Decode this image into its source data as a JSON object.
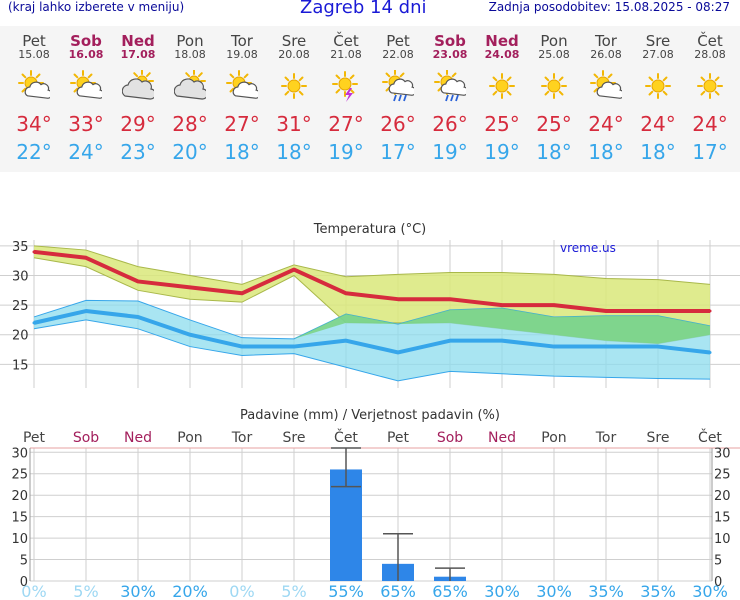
{
  "header": {
    "menu_hint": "(kraj lahko izberete v meniju)",
    "title": "Zagreb 14 dni",
    "updated": "Zadnja posodobitev: 15.08.2025 - 08:27"
  },
  "days": [
    {
      "name": "Pet",
      "date": "15.08",
      "weekend": false,
      "icon": "sun-cloud",
      "max": "34°",
      "min": "22°"
    },
    {
      "name": "Sob",
      "date": "16.08",
      "weekend": true,
      "icon": "sun-cloud",
      "max": "33°",
      "min": "24°"
    },
    {
      "name": "Ned",
      "date": "17.08",
      "weekend": true,
      "icon": "cloud-sun",
      "max": "29°",
      "min": "23°"
    },
    {
      "name": "Pon",
      "date": "18.08",
      "weekend": false,
      "icon": "cloud-sun",
      "max": "28°",
      "min": "20°"
    },
    {
      "name": "Tor",
      "date": "19.08",
      "weekend": false,
      "icon": "sun-cloud",
      "max": "27°",
      "min": "18°"
    },
    {
      "name": "Sre",
      "date": "20.08",
      "weekend": false,
      "icon": "sun",
      "max": "31°",
      "min": "18°"
    },
    {
      "name": "Čet",
      "date": "21.08",
      "weekend": false,
      "icon": "sun-storm",
      "max": "27°",
      "min": "19°"
    },
    {
      "name": "Pet",
      "date": "22.08",
      "weekend": false,
      "icon": "sun-rain",
      "max": "26°",
      "min": "17°"
    },
    {
      "name": "Sob",
      "date": "23.08",
      "weekend": true,
      "icon": "sun-rain",
      "max": "26°",
      "min": "19°"
    },
    {
      "name": "Ned",
      "date": "24.08",
      "weekend": true,
      "icon": "sun",
      "max": "25°",
      "min": "19°"
    },
    {
      "name": "Pon",
      "date": "25.08",
      "weekend": false,
      "icon": "sun",
      "max": "25°",
      "min": "18°"
    },
    {
      "name": "Tor",
      "date": "26.08",
      "weekend": false,
      "icon": "sun-cloud",
      "max": "24°",
      "min": "18°"
    },
    {
      "name": "Sre",
      "date": "27.08",
      "weekend": false,
      "icon": "sun",
      "max": "24°",
      "min": "18°"
    },
    {
      "name": "Čet",
      "date": "28.08",
      "weekend": false,
      "icon": "sun",
      "max": "24°",
      "min": "17°"
    }
  ],
  "colors": {
    "max_line": "#d62b3d",
    "max_band": "#d9e87a",
    "min_line": "#36a6ea",
    "min_band": "#8cdcee",
    "overlap_band": "#77d27a",
    "bar": "#2e86e8",
    "prob": "#36a6ea",
    "prob_zero": "#9ed8f3",
    "weekday": "#444444",
    "weekend": "#a31f5c"
  },
  "chart_data": [
    {
      "type": "line",
      "title": "Temperatura (°C)",
      "watermark": "vreme.us",
      "ylim": [
        11,
        36
      ],
      "yticks": [
        "15",
        "20",
        "25",
        "30",
        "35"
      ],
      "grid": true,
      "series": [
        {
          "name": "max",
          "values": [
            34,
            33,
            29,
            28,
            27,
            31,
            27,
            26,
            26,
            25,
            25,
            24,
            24,
            24
          ],
          "band_high": [
            35,
            34.3,
            31.5,
            30,
            28.5,
            31.8,
            29.8,
            30.2,
            30.5,
            30.5,
            30.2,
            29.5,
            29.3,
            28.5
          ],
          "band_low": [
            33,
            31.5,
            27.5,
            26,
            25.5,
            30,
            22,
            22,
            22,
            21,
            20,
            19,
            18.5,
            20
          ]
        },
        {
          "name": "min",
          "values": [
            22,
            24,
            23,
            20,
            18,
            18,
            19,
            17,
            19,
            19,
            18,
            18,
            18,
            17
          ],
          "band_high": [
            23,
            25.8,
            25.7,
            22.5,
            19.5,
            19.3,
            23.5,
            21.8,
            24.2,
            24.5,
            23,
            23.2,
            23.2,
            21.5
          ],
          "band_low": [
            21,
            22.5,
            21,
            18,
            16.5,
            16.8,
            14.5,
            12.2,
            13.8,
            13.4,
            13.0,
            12.8,
            12.6,
            12.5
          ]
        }
      ]
    },
    {
      "type": "bar",
      "title": "Padavine (mm) / Verjetnost padavin (%)",
      "categories": [
        "Pet",
        "Sob",
        "Ned",
        "Pon",
        "Tor",
        "Sre",
        "Čet",
        "Pet",
        "Sob",
        "Ned",
        "Pon",
        "Tor",
        "Sre",
        "Čet"
      ],
      "values": [
        0,
        0,
        0,
        0,
        0,
        0,
        26,
        4,
        1,
        0,
        0,
        0,
        0,
        0
      ],
      "error_high": [
        0,
        0,
        0,
        0,
        0,
        0,
        31,
        11,
        3,
        0,
        0,
        0,
        0,
        0
      ],
      "error_low": [
        0,
        0,
        0,
        0,
        0,
        0,
        22,
        0,
        0,
        0,
        0,
        0,
        0,
        0
      ],
      "ylim": [
        0,
        31
      ],
      "yticks": [
        "0",
        "5",
        "10",
        "15",
        "20",
        "25",
        "30"
      ],
      "probability": [
        "0%",
        "5%",
        "30%",
        "20%",
        "0%",
        "5%",
        "55%",
        "65%",
        "65%",
        "30%",
        "30%",
        "35%",
        "35%",
        "30%"
      ],
      "grid": true
    }
  ]
}
